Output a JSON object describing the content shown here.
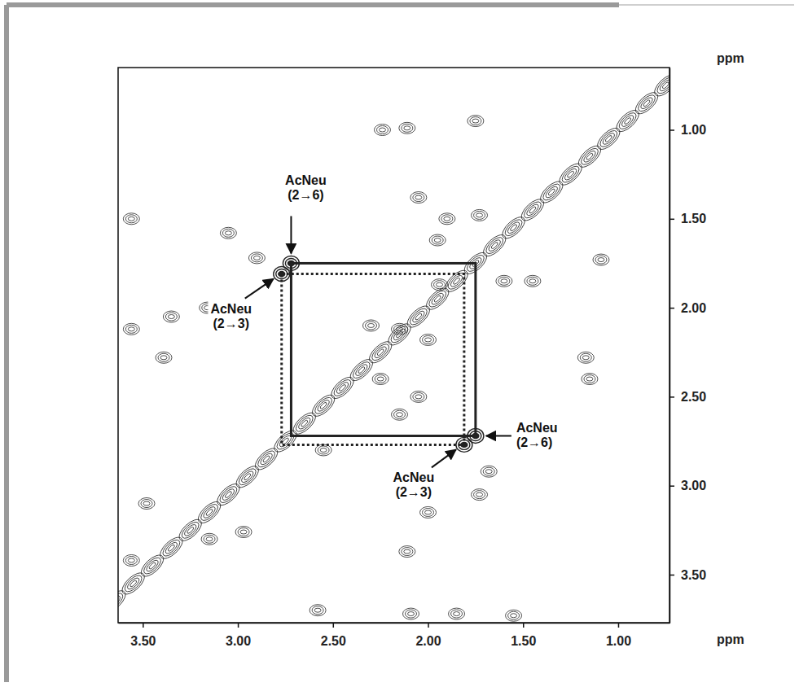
{
  "chart_data": {
    "type": "contour",
    "color": "#222222",
    "x_label": "ppm",
    "y_label": "ppm",
    "xlim": [
      3.63,
      0.73
    ],
    "ylim": [
      0.65,
      3.77
    ],
    "xticks": [
      {
        "value": 3.5,
        "label": "3.50"
      },
      {
        "value": 3.0,
        "label": "3.00"
      },
      {
        "value": 2.5,
        "label": "2.50"
      },
      {
        "value": 2.0,
        "label": "2.00"
      },
      {
        "value": 1.5,
        "label": "1.50"
      },
      {
        "value": 1.0,
        "label": "1.00"
      }
    ],
    "yticks": [
      {
        "value": 1.0,
        "label": "1.00"
      },
      {
        "value": 1.5,
        "label": "1.50"
      },
      {
        "value": 2.0,
        "label": "2.00"
      },
      {
        "value": 2.5,
        "label": "2.50"
      },
      {
        "value": 3.0,
        "label": "3.00"
      },
      {
        "value": 3.5,
        "label": "3.50"
      }
    ],
    "diagonal": [
      0.75,
      0.85,
      0.95,
      1.05,
      1.15,
      1.25,
      1.35,
      1.45,
      1.55,
      1.65,
      1.75,
      1.85,
      1.95,
      2.05,
      2.15,
      2.25,
      2.35,
      2.45,
      2.55,
      2.65,
      2.75,
      2.85,
      2.95,
      3.05,
      3.15,
      3.25,
      3.35,
      3.45,
      3.55,
      3.65,
      3.75
    ],
    "peaks": {
      "x": [
        2.24,
        2.11,
        1.75,
        2.05,
        1.9,
        1.95,
        1.73,
        1.6,
        1.45,
        1.94,
        2.9,
        3.56,
        3.56,
        3.35,
        3.16,
        3.39,
        1.09,
        1.17,
        1.15,
        2.3,
        2.15,
        2.0,
        2.25,
        2.05,
        2.15,
        1.68,
        1.73,
        2.97,
        3.48,
        3.56,
        2.11,
        2.09,
        1.85,
        2.58,
        2.0,
        1.55,
        3.05,
        2.55,
        3.15
      ],
      "y": [
        1.0,
        0.99,
        0.95,
        1.38,
        1.5,
        1.62,
        1.48,
        1.85,
        1.85,
        1.87,
        1.72,
        1.5,
        2.12,
        2.05,
        2.0,
        2.28,
        1.73,
        2.28,
        2.4,
        2.1,
        2.12,
        2.18,
        2.4,
        2.5,
        2.6,
        2.92,
        3.05,
        3.26,
        3.1,
        3.42,
        3.37,
        3.72,
        3.72,
        3.7,
        3.15,
        3.73,
        1.58,
        2.8,
        3.3
      ]
    },
    "series": [
      {
        "name": "AcNeu (2→6)",
        "x": [
          2.72,
          1.75
        ],
        "y": [
          1.75,
          2.72
        ],
        "line_style": "solid",
        "color": "#222222"
      },
      {
        "name": "AcNeu (2→3)",
        "x": [
          2.77,
          1.81
        ],
        "y": [
          1.81,
          2.77
        ],
        "line_style": "dotted",
        "color": "#222222"
      }
    ]
  }
}
